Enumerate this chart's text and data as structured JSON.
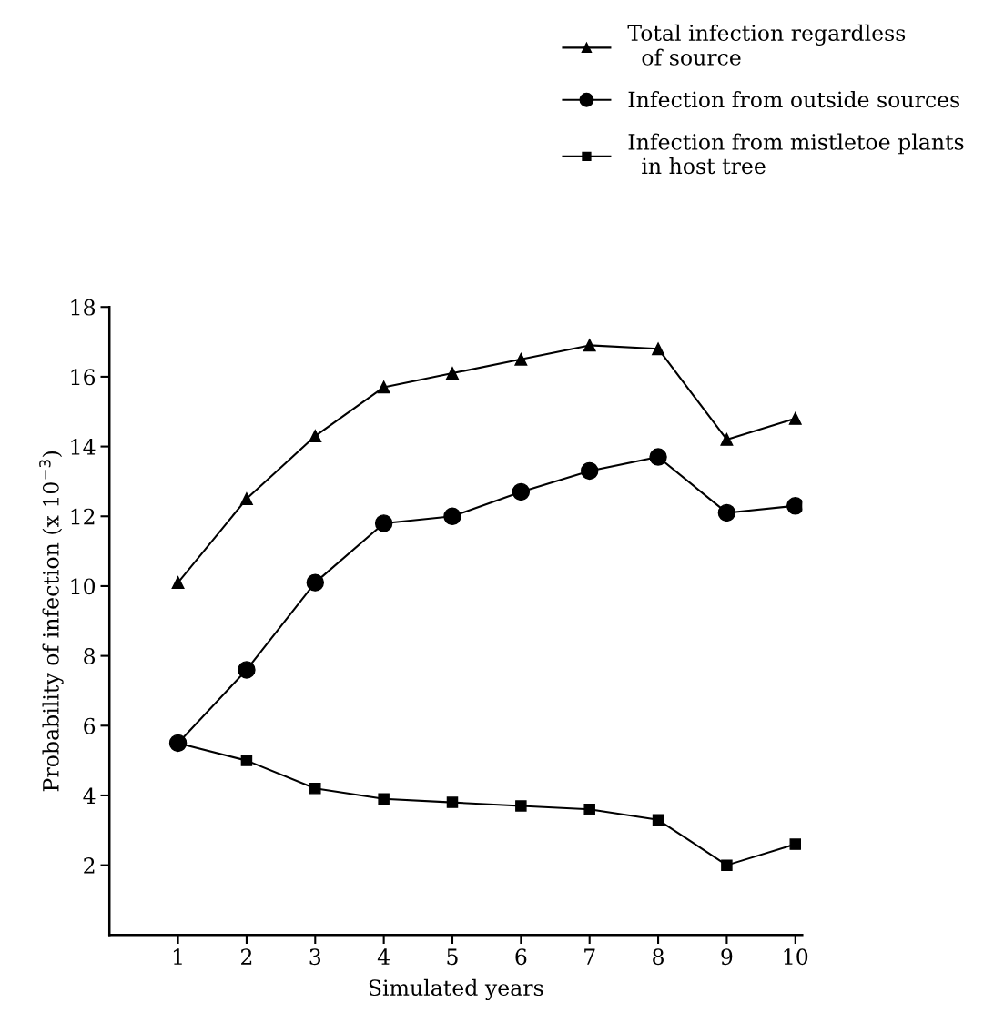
{
  "chart_data": {
    "type": "line",
    "xlabel": "Simulated years",
    "ylabel": "Probability of infection (x 10$^{−3}$)",
    "x": [
      1,
      2,
      3,
      4,
      5,
      6,
      7,
      8,
      9,
      10
    ],
    "xlim": [
      0,
      10.1
    ],
    "xticks": [
      1,
      2,
      3,
      4,
      5,
      6,
      7,
      8,
      9,
      10
    ],
    "ylim": [
      0,
      18
    ],
    "yticks": [
      2,
      4,
      6,
      8,
      10,
      12,
      14,
      16,
      18
    ],
    "grid": false,
    "legend": "top right",
    "line_style": "solid",
    "series": [
      {
        "name": "Total infection regardless\n  of source",
        "color": "#000000",
        "marker": "triangle",
        "values": [
          10.1,
          12.5,
          14.3,
          15.7,
          16.1,
          16.5,
          16.9,
          16.8,
          14.2,
          14.8
        ]
      },
      {
        "name": "Infection from outside sources",
        "color": "#000000",
        "marker": "circle",
        "values": [
          5.5,
          7.6,
          10.1,
          11.8,
          12.0,
          12.7,
          13.3,
          13.7,
          12.1,
          12.3
        ]
      },
      {
        "name": "Infection from mistletoe plants\n  in host tree",
        "color": "#000000",
        "marker": "square",
        "values": [
          5.5,
          5.0,
          4.2,
          3.9,
          3.8,
          3.7,
          3.6,
          3.3,
          2.0,
          2.6
        ]
      }
    ]
  }
}
